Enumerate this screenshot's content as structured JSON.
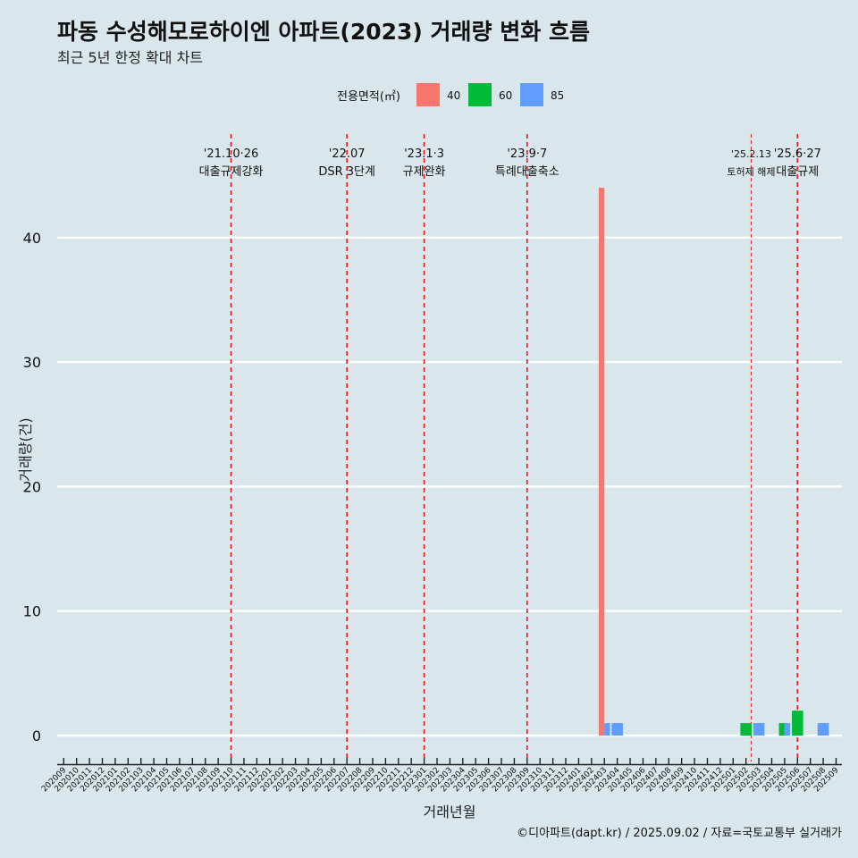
{
  "chart_data": {
    "type": "bar",
    "title": "파동 수성해모로하이엔 아파트(2023) 거래량 변화 흐름",
    "subtitle": "최근 5년 한정 확대 차트",
    "xlabel": "거래년월",
    "ylabel": "거래량(건)",
    "ylim": [
      0,
      43
    ],
    "yticks": [
      0,
      10,
      20,
      30,
      40
    ],
    "caption": "©디아파트(dapt.kr) / 2025.09.02 / 자료=국토교통부 실거래가",
    "legend": {
      "title": "전용면적(㎡)",
      "position": "top",
      "items": [
        {
          "label": "40",
          "color": "#f8766d"
        },
        {
          "label": "60",
          "color": "#00ba38"
        },
        {
          "label": "85",
          "color": "#619cff"
        }
      ]
    },
    "categories": [
      "202009",
      "202010",
      "202011",
      "202012",
      "202101",
      "202102",
      "202103",
      "202104",
      "202105",
      "202106",
      "202107",
      "202108",
      "202109",
      "202110",
      "202111",
      "202112",
      "202201",
      "202202",
      "202203",
      "202204",
      "202205",
      "202206",
      "202207",
      "202208",
      "202209",
      "202210",
      "202211",
      "202212",
      "202301",
      "202302",
      "202303",
      "202304",
      "202305",
      "202306",
      "202307",
      "202308",
      "202309",
      "202310",
      "202311",
      "202312",
      "202401",
      "202402",
      "202403",
      "202404",
      "202405",
      "202406",
      "202407",
      "202408",
      "202409",
      "202410",
      "202411",
      "202412",
      "202501",
      "202502",
      "202503",
      "202504",
      "202505",
      "202506",
      "202507",
      "202508",
      "202509"
    ],
    "series": [
      {
        "name": "40",
        "color": "#f8766d",
        "points": [
          {
            "x": "202403",
            "y": 44
          }
        ]
      },
      {
        "name": "60",
        "color": "#00ba38",
        "points": [
          {
            "x": "202502",
            "y": 1
          },
          {
            "x": "202505",
            "y": 1
          },
          {
            "x": "202506",
            "y": 2
          }
        ]
      },
      {
        "name": "85",
        "color": "#619cff",
        "points": [
          {
            "x": "202403",
            "y": 1
          },
          {
            "x": "202404",
            "y": 1
          },
          {
            "x": "202503",
            "y": 1
          },
          {
            "x": "202505",
            "y": 1
          },
          {
            "x": "202508",
            "y": 1
          }
        ]
      }
    ],
    "events": [
      {
        "date": "'21.10·26",
        "label": "대출규제강화",
        "x": "202110",
        "offset": 0.0,
        "style": "major"
      },
      {
        "date": "'22.07",
        "label": "DSR 3단계",
        "x": "202207",
        "offset": 0.0,
        "style": "major"
      },
      {
        "date": "'23.1·3",
        "label": "규제완화",
        "x": "202301",
        "offset": 0.0,
        "style": "major"
      },
      {
        "date": "'23.9·7",
        "label": "특례대출축소",
        "x": "202309",
        "offset": 0.0,
        "style": "major"
      },
      {
        "date": "'25.2.13",
        "label": "토허제 해제",
        "x": "202502",
        "offset": 0.4,
        "style": "minor"
      },
      {
        "date": "'25.6·27",
        "label": "대출규제",
        "x": "202506",
        "offset": 0.0,
        "style": "major"
      }
    ]
  }
}
